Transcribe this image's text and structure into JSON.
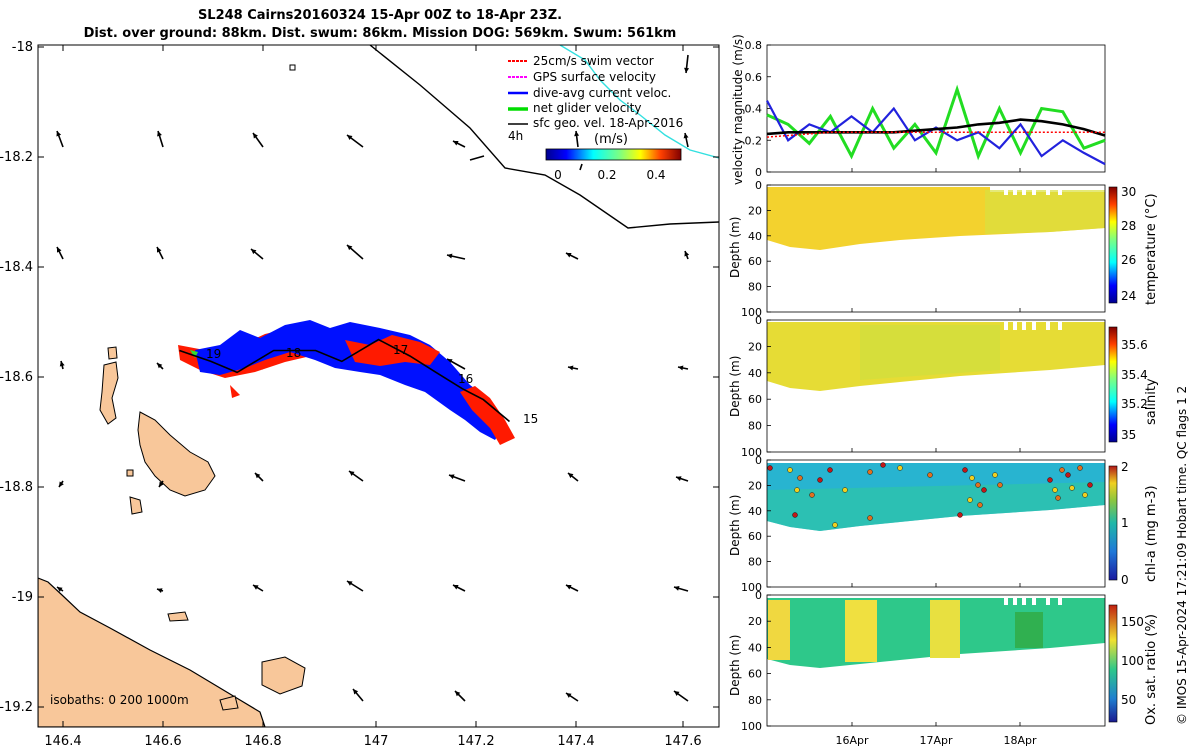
{
  "title_line1": "SL248 Cairns20160324 15-Apr 00Z to 18-Apr 23Z.",
  "title_line2": "Dist. over ground: 88km. Dist. swum: 86km. Mission DOG: 569km. Swum: 561km",
  "credit": "© IMOS 15-Apr-2024 17:21:09 Hobart time. QC flags 1  2",
  "map": {
    "yticks": [
      "-18",
      "-18.2",
      "-18.4",
      "-18.6",
      "-18.8",
      "-19",
      "-19.2"
    ],
    "xticks": [
      "146.4",
      "146.6",
      "146.8",
      "147",
      "147.2",
      "147.4",
      "147.6"
    ],
    "legend": [
      "25cm/s swim vector",
      "GPS surface velocity",
      "dive-avg current veloc.",
      "net glider velocity",
      "sfc geo. vel. 18-Apr-2016"
    ],
    "legend_colors": [
      "#ff0000",
      "#ff00ff",
      "#0000ff",
      "#00dd00",
      "#000000"
    ],
    "interval_label": "4h",
    "colorbar_unit": "(m/s)",
    "colorbar_ticks": [
      "0",
      "0.2",
      "0.4"
    ],
    "day_labels": [
      "19",
      "18",
      "17",
      "16",
      "15"
    ],
    "isobath_label": "isobaths: 0   200  1000m"
  },
  "panels": {
    "date_ticks": [
      "16Apr",
      "17Apr",
      "18Apr"
    ],
    "velocity": {
      "ylabel": "velocity magnitude (m/s)",
      "yticks": [
        "0",
        "0.2",
        "0.4",
        "0.6",
        "0.8"
      ]
    },
    "depth_ylabel": "Depth (m)",
    "depth_ticks": [
      "0",
      "20",
      "40",
      "60",
      "80",
      "100"
    ],
    "temperature": {
      "label": "temperature (°C)",
      "ticks": [
        "24",
        "26",
        "28",
        "30"
      ]
    },
    "salinity": {
      "label": "salinity",
      "ticks": [
        "35",
        "35.2",
        "35.4",
        "35.6"
      ]
    },
    "chla": {
      "label": "chl-a (mg m-3)",
      "ticks": [
        "0",
        "1",
        "2"
      ]
    },
    "oxygen": {
      "label": "Ox. sat. ratio (%)",
      "ticks": [
        "50",
        "100",
        "150"
      ]
    }
  },
  "chart_data": [
    {
      "type": "scatter",
      "title": "SL248 Cairns20160324 15-Apr 00Z to 18-Apr 23Z.",
      "xlim": [
        146.35,
        147.65
      ],
      "ylim": [
        -19.25,
        -18.0
      ],
      "track": {
        "lon": [
          146.62,
          146.68,
          146.73,
          146.8,
          146.88,
          146.93,
          147.0,
          147.06,
          147.11,
          147.16,
          147.2,
          147.25
        ],
        "lat": [
          -18.56,
          -18.58,
          -18.6,
          -18.56,
          -18.56,
          -18.58,
          -18.54,
          -18.57,
          -18.6,
          -18.63,
          -18.65,
          -18.69
        ]
      }
    },
    {
      "type": "line",
      "ylabel": "velocity magnitude (m/s)",
      "ylim": [
        0,
        0.8
      ],
      "x_days": [
        15.0,
        15.25,
        15.5,
        15.75,
        16.0,
        16.25,
        16.5,
        16.75,
        17.0,
        17.25,
        17.5,
        17.75,
        18.0,
        18.25,
        18.5,
        18.75,
        19.0
      ],
      "series": [
        {
          "name": "net glider velocity",
          "color": "#22dd22",
          "values": [
            0.36,
            0.3,
            0.18,
            0.35,
            0.1,
            0.4,
            0.15,
            0.3,
            0.12,
            0.52,
            0.1,
            0.4,
            0.12,
            0.4,
            0.38,
            0.15,
            0.2
          ]
        },
        {
          "name": "dive-avg current veloc.",
          "color": "#2222dd",
          "values": [
            0.45,
            0.2,
            0.3,
            0.25,
            0.35,
            0.25,
            0.4,
            0.2,
            0.28,
            0.2,
            0.25,
            0.15,
            0.3,
            0.1,
            0.2,
            0.12,
            0.05
          ]
        },
        {
          "name": "sfc geo. vel. 18-Apr-2016",
          "color": "#000000",
          "values": [
            0.24,
            0.25,
            0.25,
            0.25,
            0.25,
            0.25,
            0.25,
            0.26,
            0.27,
            0.28,
            0.3,
            0.31,
            0.33,
            0.32,
            0.3,
            0.27,
            0.23
          ]
        },
        {
          "name": "GPS surface velocity",
          "color": "#ff0000",
          "values": [
            0.22,
            0.23,
            0.24,
            0.25,
            0.25,
            0.25,
            0.25,
            0.25,
            0.25,
            0.25,
            0.25,
            0.25,
            0.25,
            0.25,
            0.25,
            0.25,
            0.25
          ]
        }
      ]
    },
    {
      "type": "heatmap",
      "label": "temperature (°C)",
      "clim": [
        23.5,
        30
      ],
      "depth_range": [
        0,
        100
      ]
    },
    {
      "type": "heatmap",
      "label": "salinity",
      "clim": [
        34.9,
        35.7
      ],
      "depth_range": [
        0,
        100
      ]
    },
    {
      "type": "heatmap",
      "label": "chl-a (mg m-3)",
      "clim": [
        0,
        2
      ],
      "depth_range": [
        0,
        100
      ]
    },
    {
      "type": "heatmap",
      "label": "Ox. sat. ratio (%)",
      "clim": [
        20,
        175
      ],
      "depth_range": [
        0,
        100
      ]
    }
  ]
}
